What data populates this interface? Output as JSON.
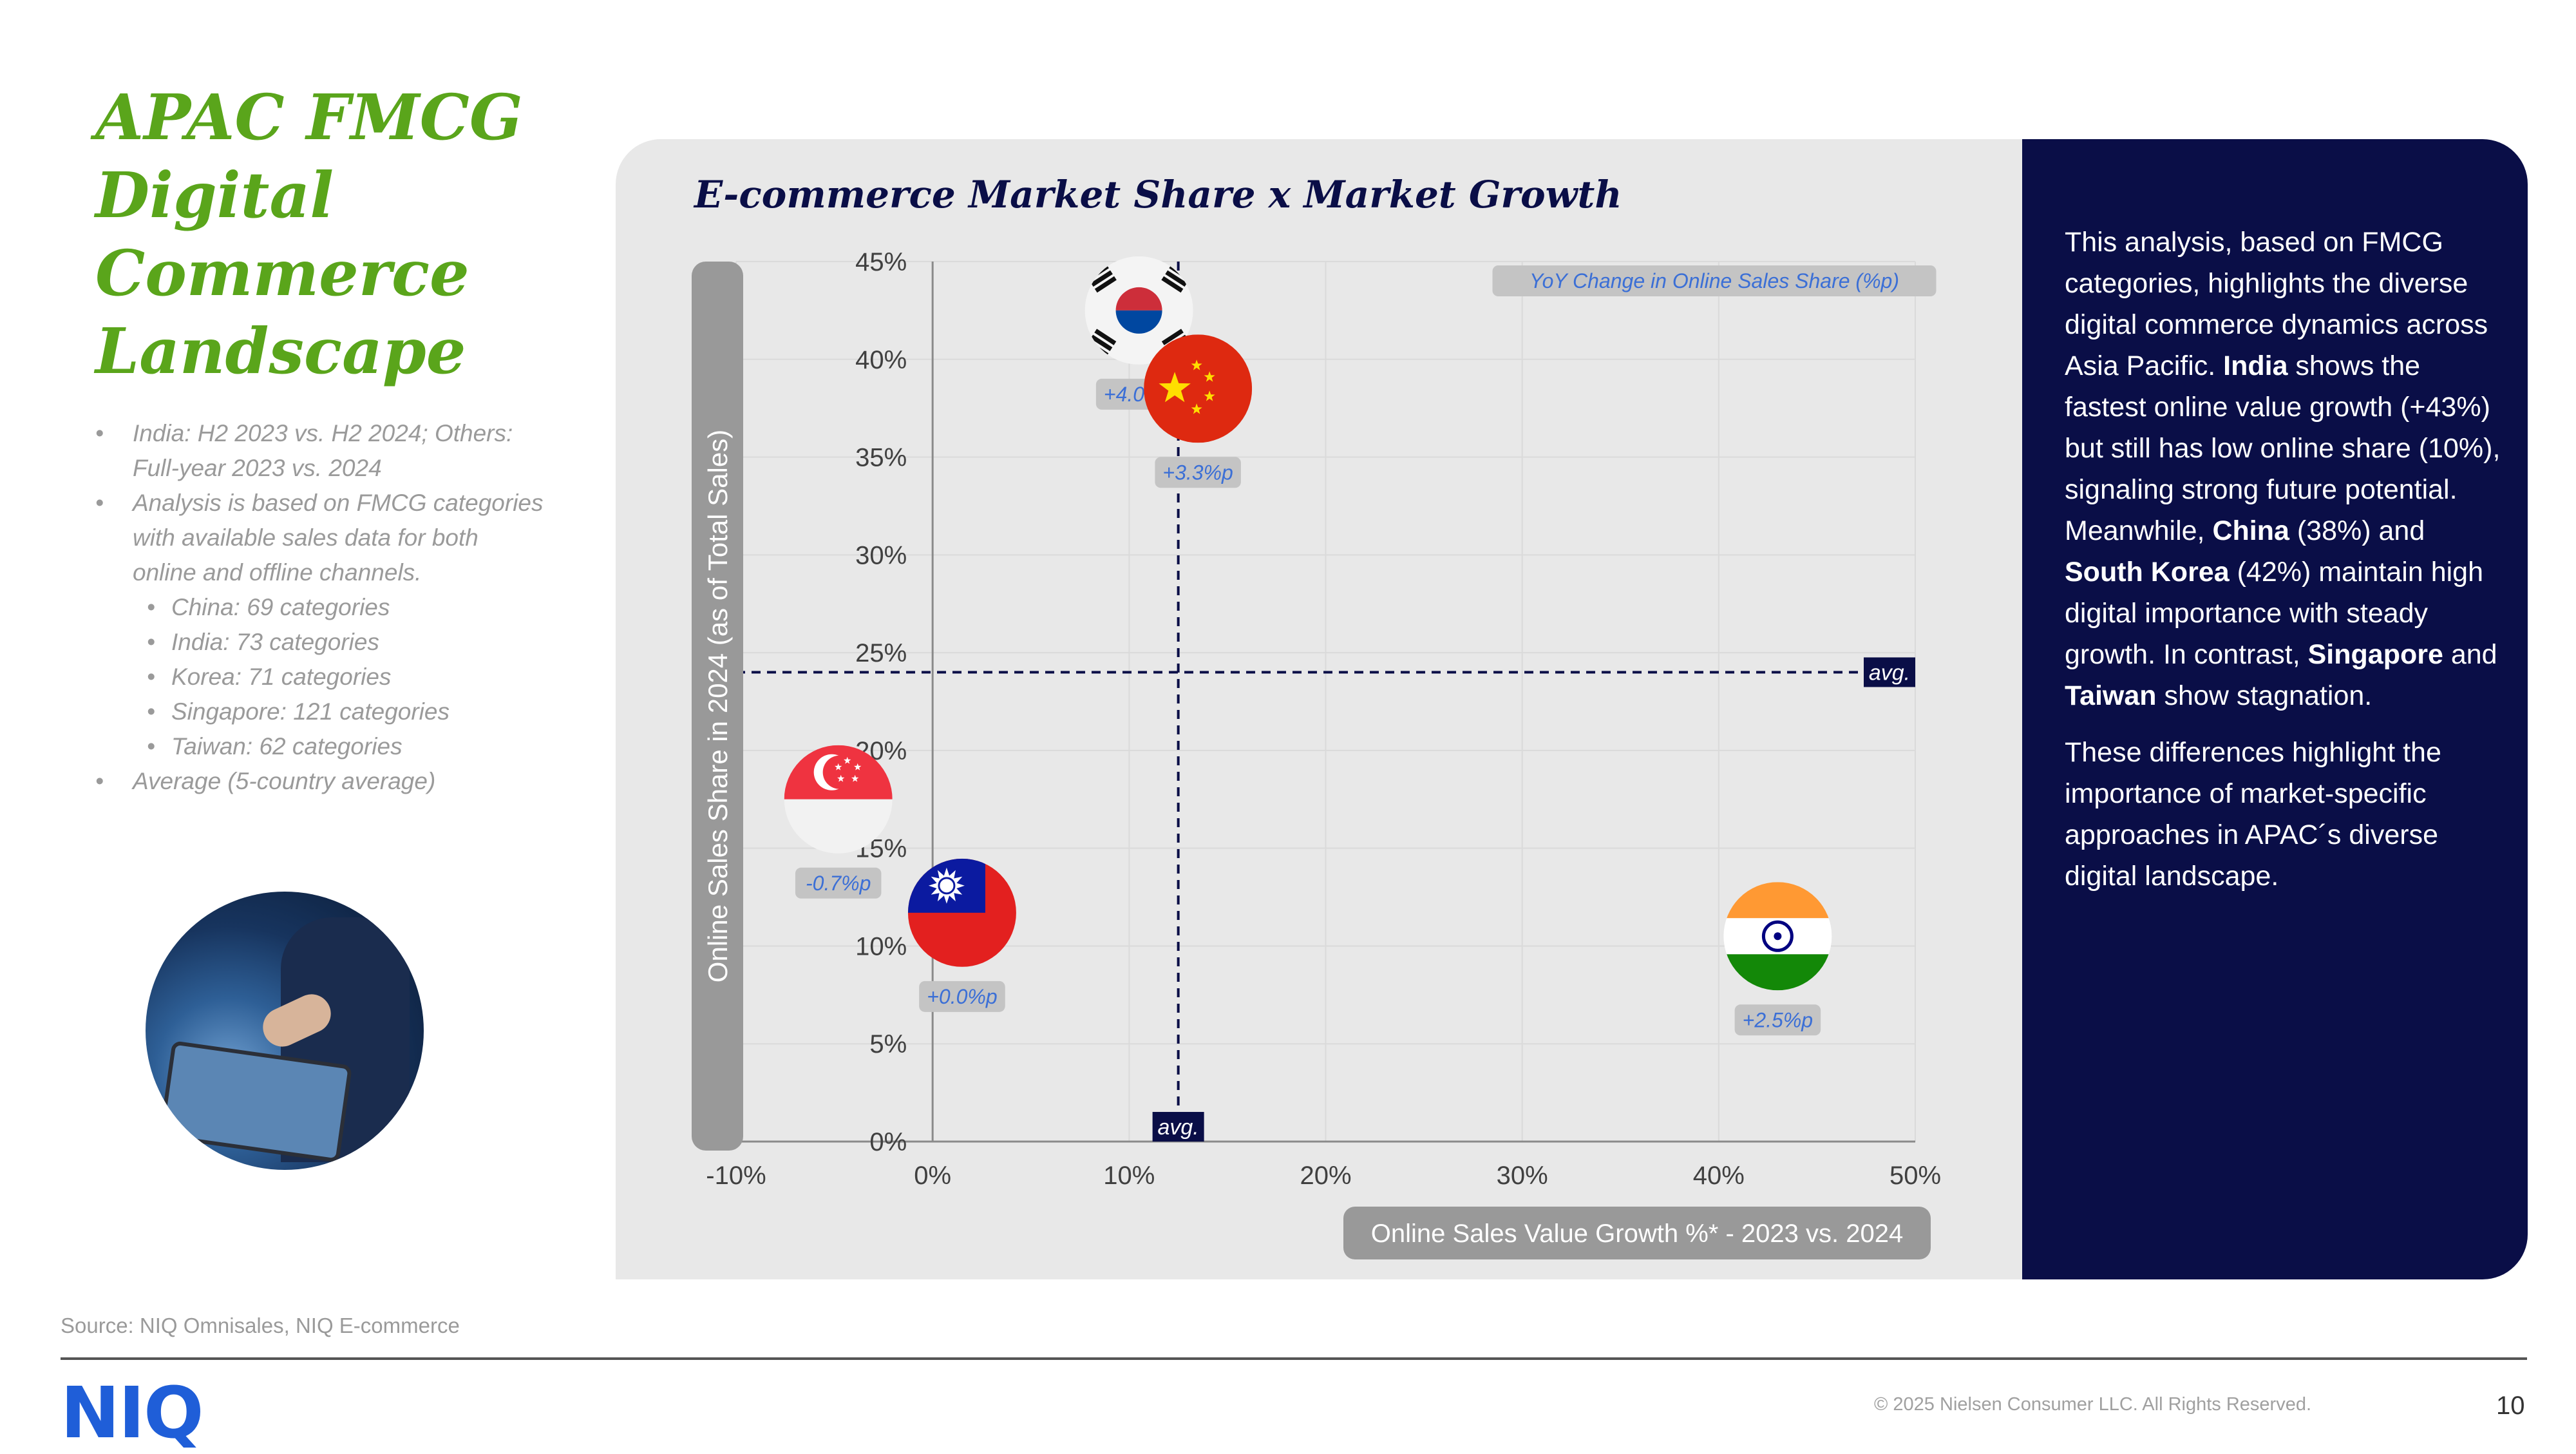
{
  "title_lines": [
    "APAC FMCG",
    "Digital",
    "Commerce",
    "Landscape"
  ],
  "notes": [
    {
      "text": "India: H2 2023 vs. H2 2024; Others: Full-year 2023 vs. 2024",
      "level": 1
    },
    {
      "text": "Analysis is based on FMCG categories with available sales data for both online and offline channels.",
      "level": 1
    },
    {
      "text": "China: 69 categories",
      "level": 2
    },
    {
      "text": "India: 73 categories",
      "level": 2
    },
    {
      "text": "Korea: 71 categories",
      "level": 2
    },
    {
      "text": "Singapore: 121 categories",
      "level": 2
    },
    {
      "text": "Taiwan: 62 categories",
      "level": 2
    },
    {
      "text": "Average (5-country average)",
      "level": 1
    }
  ],
  "commentary": {
    "p1_a": "This analysis, based on FMCG categories, highlights the diverse digital commerce dynamics across Asia Pacific. ",
    "p1_india": "India",
    "p1_b": " shows the fastest online value growth (+43%) but still has low online share (10%), signaling strong future potential. Meanwhile, ",
    "p1_china": "China",
    "p1_c": " (38%) and ",
    "p1_korea": "South Korea",
    "p1_d": " (42%) maintain high digital importance with steady growth. In contrast, ",
    "p1_singapore": "Singapore",
    "p1_e": " and ",
    "p1_taiwan": "Taiwan",
    "p1_f": " show stagnation.",
    "p2": "These differences highlight the importance of market-specific approaches in APAC´s diverse digital landscape."
  },
  "chart_data": {
    "type": "scatter",
    "title": "E-commerce Market Share x Market Growth",
    "xlabel": "Online Sales Value Growth %* - 2023 vs. 2024",
    "ylabel": "Online Sales Share in 2024 (as of Total Sales)",
    "xlim": [
      -10,
      50
    ],
    "ylim": [
      0,
      45
    ],
    "xticks": [
      -10,
      0,
      10,
      20,
      30,
      40,
      50
    ],
    "yticks": [
      0,
      5,
      10,
      15,
      20,
      25,
      30,
      35,
      40,
      45
    ],
    "xtick_labels": [
      "-10%",
      "0%",
      "10%",
      "20%",
      "30%",
      "40%",
      "50%"
    ],
    "ytick_labels": [
      "0%",
      "5%",
      "10%",
      "15%",
      "20%",
      "25%",
      "30%",
      "35%",
      "40%",
      "45%"
    ],
    "legend": "YoY Change in Online Sales Share (%p)",
    "avg_label": "avg.",
    "avg_x": 12.5,
    "avg_y": 24,
    "points": [
      {
        "name": "South Korea",
        "flag": "korea",
        "x": 10.5,
        "y": 42.5,
        "label": "+4.0%p"
      },
      {
        "name": "China",
        "flag": "china",
        "x": 13.5,
        "y": 38.5,
        "label": "+3.3%p"
      },
      {
        "name": "Singapore",
        "flag": "singapore",
        "x": -4.8,
        "y": 17.5,
        "label": "-0.7%p"
      },
      {
        "name": "Taiwan",
        "flag": "taiwan",
        "x": 1.5,
        "y": 11.7,
        "label": "+0.0%p"
      },
      {
        "name": "India",
        "flag": "india",
        "x": 43,
        "y": 10.5,
        "label": "+2.5%p"
      }
    ]
  },
  "footer": {
    "source": "Source: NIQ Omnisales, NIQ E-commerce",
    "logo": "NIQ",
    "copyright": "© 2025 Nielsen Consumer LLC. All Rights Reserved.",
    "page": "10"
  },
  "colors": {
    "accent_green": "#5aa51b",
    "navy": "#0a0e47",
    "label_blue": "#3b6fd6",
    "pill_gray": "#c4c4c4"
  }
}
